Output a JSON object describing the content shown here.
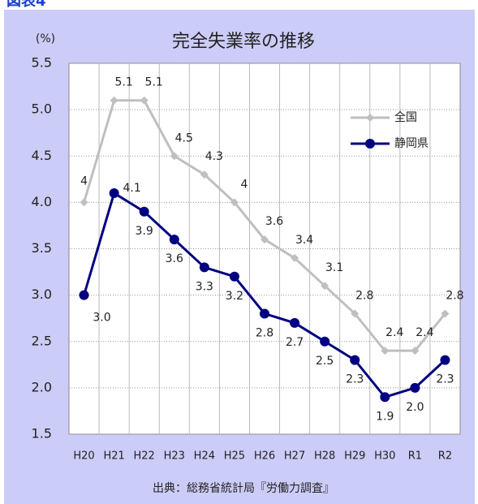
{
  "figure_label": "図表4",
  "chart_data": {
    "type": "line",
    "title": "完全失業率の推移",
    "y_unit": "(%)",
    "source": "出典：総務省統計局『労働力調査』",
    "categories": [
      "H20",
      "H21",
      "H22",
      "H23",
      "H24",
      "H25",
      "H26",
      "H27",
      "H28",
      "H29",
      "H30",
      "R1",
      "R2"
    ],
    "series": [
      {
        "name": "全国",
        "color": "#bfbfbf",
        "marker": "diamond",
        "values": [
          4,
          5.1,
          5.1,
          4.5,
          4.3,
          4,
          3.6,
          3.4,
          3.1,
          2.8,
          2.4,
          2.4,
          2.8
        ]
      },
      {
        "name": "静岡県",
        "color": "#000080",
        "marker": "circle",
        "values": [
          3,
          4.1,
          3.9,
          3.6,
          3.3,
          3.2,
          2.8,
          2.7,
          2.5,
          2.3,
          1.9,
          2,
          2.3
        ],
        "value_labels": [
          "3.0",
          "4.1",
          "3.9",
          "3.6",
          "3.3",
          "3.2",
          "2.8",
          "2.7",
          "2.5",
          "2.3",
          "1.9",
          "2.0",
          "2.3"
        ]
      }
    ],
    "ylim": [
      1.5,
      5.5
    ],
    "yticks": [
      1.5,
      {
        "value": 2,
        "label": "2.0"
      },
      2.5,
      {
        "value": 3,
        "label": "3.0"
      },
      3.5,
      {
        "value": 4,
        "label": "4.0"
      },
      4.5,
      {
        "value": 5,
        "label": "5.0"
      },
      5.5
    ],
    "grid": true,
    "legend": "upper right"
  }
}
